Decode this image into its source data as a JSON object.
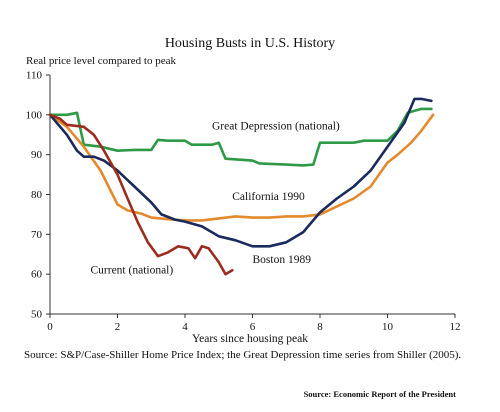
{
  "chart_data": {
    "type": "line",
    "title": "Housing Busts in U.S. History",
    "ylabel": "Real price level compared to peak",
    "xlabel": "Years since housing peak",
    "xlim": [
      0,
      12
    ],
    "ylim": [
      50,
      110
    ],
    "xticks": [
      0,
      2,
      4,
      6,
      8,
      10,
      12
    ],
    "yticks": [
      50,
      60,
      70,
      80,
      90,
      100,
      110
    ],
    "legend": "inline labels",
    "grid": false,
    "series": [
      {
        "name": "Great Depression (national)",
        "color": "#2e9a46",
        "points": [
          [
            0,
            100
          ],
          [
            0.5,
            100
          ],
          [
            0.8,
            100.5
          ],
          [
            1.0,
            92.5
          ],
          [
            1.5,
            92
          ],
          [
            2.0,
            91
          ],
          [
            2.5,
            91.2
          ],
          [
            3.0,
            91.2
          ],
          [
            3.2,
            93.7
          ],
          [
            3.5,
            93.5
          ],
          [
            4.0,
            93.5
          ],
          [
            4.2,
            92.5
          ],
          [
            4.8,
            92.5
          ],
          [
            5.0,
            93
          ],
          [
            5.2,
            89
          ],
          [
            6.0,
            88.5
          ],
          [
            6.2,
            87.8
          ],
          [
            7.0,
            87.5
          ],
          [
            7.5,
            87.3
          ],
          [
            7.8,
            87.5
          ],
          [
            8.0,
            93
          ],
          [
            8.5,
            93
          ],
          [
            9.0,
            93
          ],
          [
            9.3,
            93.5
          ],
          [
            9.7,
            93.5
          ],
          [
            10.0,
            93.5
          ],
          [
            10.3,
            96
          ],
          [
            10.6,
            100.5
          ],
          [
            11.0,
            101.5
          ],
          [
            11.2,
            101.5
          ],
          [
            11.3,
            101.5
          ]
        ]
      },
      {
        "name": "California 1990",
        "color": "#e48a2c",
        "points": [
          [
            0,
            100
          ],
          [
            0.5,
            97
          ],
          [
            1.0,
            92
          ],
          [
            1.5,
            86
          ],
          [
            2.0,
            77.5
          ],
          [
            2.3,
            76
          ],
          [
            2.7,
            75.2
          ],
          [
            3.0,
            74.2
          ],
          [
            3.5,
            73.8
          ],
          [
            4.0,
            73.5
          ],
          [
            4.5,
            73.5
          ],
          [
            5.0,
            74
          ],
          [
            5.5,
            74.5
          ],
          [
            6.0,
            74.2
          ],
          [
            6.5,
            74.2
          ],
          [
            7.0,
            74.5
          ],
          [
            7.5,
            74.5
          ],
          [
            8.0,
            75
          ],
          [
            8.5,
            77
          ],
          [
            9.0,
            79
          ],
          [
            9.5,
            82
          ],
          [
            10.0,
            88
          ],
          [
            10.3,
            90
          ],
          [
            10.7,
            93
          ],
          [
            11.0,
            96
          ],
          [
            11.35,
            100
          ]
        ]
      },
      {
        "name": "Boston 1989",
        "color": "#1b2a5e",
        "points": [
          [
            0,
            100
          ],
          [
            0.5,
            95
          ],
          [
            0.8,
            91
          ],
          [
            1.0,
            89.5
          ],
          [
            1.3,
            89.5
          ],
          [
            1.6,
            88.5
          ],
          [
            2.0,
            86
          ],
          [
            2.5,
            82
          ],
          [
            3.0,
            78
          ],
          [
            3.3,
            75
          ],
          [
            3.7,
            73.7
          ],
          [
            4.0,
            73.2
          ],
          [
            4.5,
            72
          ],
          [
            5.0,
            69.5
          ],
          [
            5.5,
            68.5
          ],
          [
            6.0,
            67
          ],
          [
            6.5,
            67
          ],
          [
            7.0,
            68
          ],
          [
            7.5,
            70.5
          ],
          [
            8.0,
            75.5
          ],
          [
            8.5,
            79
          ],
          [
            9.0,
            82
          ],
          [
            9.5,
            86
          ],
          [
            10.0,
            92
          ],
          [
            10.5,
            98
          ],
          [
            10.8,
            104
          ],
          [
            11.0,
            104
          ],
          [
            11.3,
            103.5
          ]
        ]
      },
      {
        "name": "Current (national)",
        "color": "#9b2d1f",
        "points": [
          [
            0,
            100
          ],
          [
            0.3,
            99
          ],
          [
            0.5,
            97.5
          ],
          [
            1.0,
            97
          ],
          [
            1.3,
            95
          ],
          [
            1.6,
            91
          ],
          [
            2.0,
            85
          ],
          [
            2.3,
            79
          ],
          [
            2.6,
            73
          ],
          [
            2.9,
            68
          ],
          [
            3.2,
            64.5
          ],
          [
            3.5,
            65.5
          ],
          [
            3.8,
            67
          ],
          [
            4.1,
            66.5
          ],
          [
            4.3,
            64
          ],
          [
            4.5,
            67
          ],
          [
            4.7,
            66.5
          ],
          [
            5.0,
            63
          ],
          [
            5.2,
            60
          ],
          [
            5.4,
            61
          ]
        ]
      }
    ],
    "annotations": [
      {
        "text": "Great Depression (national)",
        "x": 4.8,
        "y": 96.3,
        "color": "#111111"
      },
      {
        "text": "California 1990",
        "x": 5.4,
        "y": 78.6,
        "color": "#111111"
      },
      {
        "text": "Boston 1989",
        "x": 6.0,
        "y": 62.8,
        "color": "#111111"
      },
      {
        "text": "Current (national)",
        "x": 1.2,
        "y": 60.2,
        "color": "#111111"
      }
    ]
  },
  "source_note": "Source: S&P/Case-Shiller Home Price Index; the Great Depression time series from Shiller (2005).",
  "source_credit": "Source:  Economic Report of the President"
}
